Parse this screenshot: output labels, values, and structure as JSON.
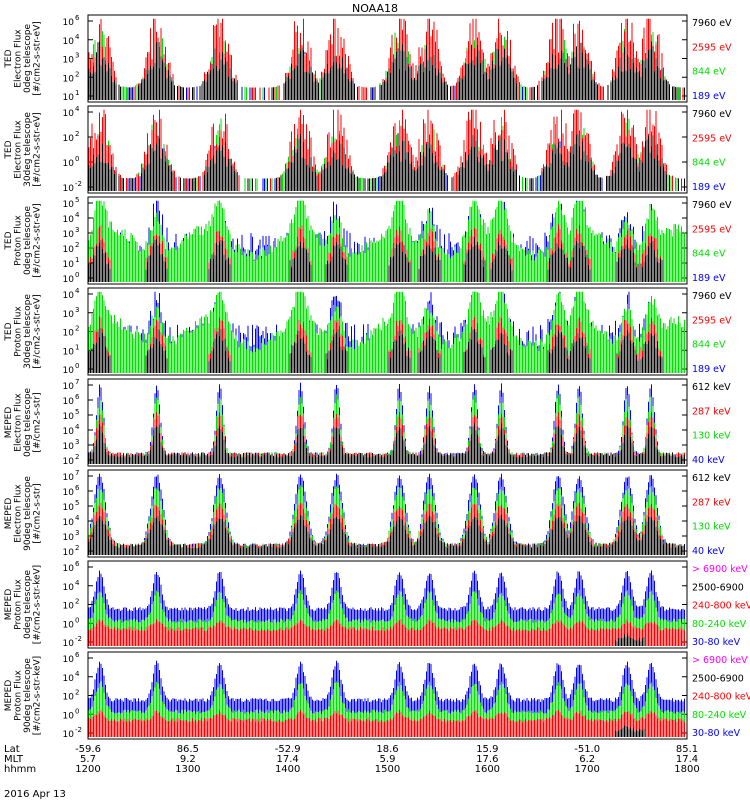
{
  "title": "NOAA18",
  "date_label": "2016 Apr 13",
  "xaxis": {
    "row_labels": [
      "Lat",
      "MLT",
      "hhmm"
    ],
    "ticks": [
      {
        "lat": "-59.6",
        "mlt": "5.7",
        "hhmm": "1200"
      },
      {
        "lat": "86.5",
        "mlt": "9.2",
        "hhmm": "1300"
      },
      {
        "lat": "-52.9",
        "mlt": "17.4",
        "hhmm": "1400"
      },
      {
        "lat": "18.6",
        "mlt": "5.9",
        "hhmm": "1500"
      },
      {
        "lat": "15.9",
        "mlt": "17.6",
        "hhmm": "1600"
      },
      {
        "lat": "-51.0",
        "mlt": "6.2",
        "hhmm": "1700"
      },
      {
        "lat": "85.1",
        "mlt": "17.4",
        "hhmm": "1800"
      }
    ]
  },
  "colors": {
    "black": "#000000",
    "red": "#ff0000",
    "green": "#00e000",
    "blue": "#0000ff",
    "magenta": "#ff00ff"
  },
  "panels": [
    {
      "id": "ted-e-0",
      "ylabel": [
        "TED",
        "Electron Flux",
        "0deg telescope",
        "[#/cm2-s-str-eV]"
      ],
      "ticks": [
        {
          "v": "10",
          "e": "6"
        },
        {
          "v": "10",
          "e": "4"
        },
        {
          "v": "10",
          "e": "3"
        },
        {
          "v": "10",
          "e": "2"
        },
        {
          "v": "10",
          "e": "1"
        }
      ],
      "legend": [
        {
          "text": "7960 eV",
          "color": "black"
        },
        {
          "text": "2595 eV",
          "color": "red"
        },
        {
          "text": "844 eV",
          "color": "green"
        },
        {
          "text": "189 eV",
          "color": "blue"
        }
      ]
    },
    {
      "id": "ted-e-30",
      "ylabel": [
        "TED",
        "Electron Flux",
        "30deg telescope",
        "[#/cm2-s-str-eV]"
      ],
      "ticks": [
        {
          "v": "10",
          "e": "4"
        },
        {
          "v": "10",
          "e": "2"
        },
        {
          "v": "10",
          "e": "0"
        },
        {
          "v": "10",
          "e": "-2"
        }
      ],
      "legend": [
        {
          "text": "7960 eV",
          "color": "black"
        },
        {
          "text": "2595 eV",
          "color": "red"
        },
        {
          "text": "844 eV",
          "color": "green"
        },
        {
          "text": "189 eV",
          "color": "blue"
        }
      ]
    },
    {
      "id": "ted-p-0",
      "ylabel": [
        "TED",
        "Proton Flux",
        "0deg telescope",
        "[#/cm2-s-str-eV]"
      ],
      "ticks": [
        {
          "v": "10",
          "e": "5"
        },
        {
          "v": "10",
          "e": "4"
        },
        {
          "v": "10",
          "e": "3"
        },
        {
          "v": "10",
          "e": "2"
        },
        {
          "v": "10",
          "e": "1"
        },
        {
          "v": "10",
          "e": "0"
        }
      ],
      "legend": [
        {
          "text": "7960 eV",
          "color": "black"
        },
        {
          "text": "2595 eV",
          "color": "red"
        },
        {
          "text": "844 eV",
          "color": "green"
        },
        {
          "text": "189 eV",
          "color": "blue"
        }
      ]
    },
    {
      "id": "ted-p-30",
      "ylabel": [
        "TED",
        "Proton Flux",
        "30deg telescope",
        "[#/cm2-s-str-eV]"
      ],
      "ticks": [
        {
          "v": "10",
          "e": "4"
        },
        {
          "v": "10",
          "e": "3"
        },
        {
          "v": "10",
          "e": "2"
        },
        {
          "v": "10",
          "e": "1"
        },
        {
          "v": "10",
          "e": "0"
        }
      ],
      "legend": [
        {
          "text": "7960 eV",
          "color": "black"
        },
        {
          "text": "2595 eV",
          "color": "red"
        },
        {
          "text": "844 eV",
          "color": "green"
        },
        {
          "text": "189 eV",
          "color": "blue"
        }
      ]
    },
    {
      "id": "meped-e-0",
      "ylabel": [
        "MEPED",
        "Electron Flux",
        "0deg telescope",
        "[#/cm2-s-str]"
      ],
      "ticks": [
        {
          "v": "10",
          "e": "7"
        },
        {
          "v": "10",
          "e": "6"
        },
        {
          "v": "10",
          "e": "5"
        },
        {
          "v": "10",
          "e": "4"
        },
        {
          "v": "10",
          "e": "3"
        },
        {
          "v": "10",
          "e": "2"
        }
      ],
      "legend": [
        {
          "text": "612 keV",
          "color": "black"
        },
        {
          "text": "287 keV",
          "color": "red"
        },
        {
          "text": "130 keV",
          "color": "green"
        },
        {
          "text": "40 keV",
          "color": "blue"
        }
      ]
    },
    {
      "id": "meped-e-90",
      "ylabel": [
        "MEPED",
        "Electron Flux",
        "90deg telescope",
        "[#/cm2-s-str]"
      ],
      "ticks": [
        {
          "v": "10",
          "e": "7"
        },
        {
          "v": "10",
          "e": "6"
        },
        {
          "v": "10",
          "e": "5"
        },
        {
          "v": "10",
          "e": "4"
        },
        {
          "v": "10",
          "e": "3"
        },
        {
          "v": "10",
          "e": "2"
        }
      ],
      "legend": [
        {
          "text": "612 keV",
          "color": "black"
        },
        {
          "text": "287 keV",
          "color": "red"
        },
        {
          "text": "130 keV",
          "color": "green"
        },
        {
          "text": "40 keV",
          "color": "blue"
        }
      ]
    },
    {
      "id": "meped-p-0",
      "ylabel": [
        "MEPED",
        "Proton Flux",
        "0deg telescope",
        "[#/cm2-s-str-keV]"
      ],
      "ticks": [
        {
          "v": "10",
          "e": "6"
        },
        {
          "v": "10",
          "e": "4"
        },
        {
          "v": "10",
          "e": "2"
        },
        {
          "v": "10",
          "e": "0"
        },
        {
          "v": "10",
          "e": "-2"
        }
      ],
      "legend": [
        {
          "text": "> 6900 keV",
          "color": "magenta"
        },
        {
          "text": "2500-6900",
          "color": "black"
        },
        {
          "text": "240-800 keV",
          "color": "red"
        },
        {
          "text": "80-240 keV",
          "color": "green"
        },
        {
          "text": "30-80 keV",
          "color": "blue"
        }
      ]
    },
    {
      "id": "meped-p-90",
      "ylabel": [
        "MEPED",
        "Proton Flux",
        "90deg telescope",
        "[#/cm2-s-str-keV]"
      ],
      "ticks": [
        {
          "v": "10",
          "e": "6"
        },
        {
          "v": "10",
          "e": "4"
        },
        {
          "v": "10",
          "e": "2"
        },
        {
          "v": "10",
          "e": "0"
        },
        {
          "v": "10",
          "e": "-2"
        }
      ],
      "legend": [
        {
          "text": "> 6900 keV",
          "color": "magenta"
        },
        {
          "text": "2500-6900",
          "color": "black"
        },
        {
          "text": "240-800 keV",
          "color": "red"
        },
        {
          "text": "80-240 keV",
          "color": "green"
        },
        {
          "text": "30-80 keV",
          "color": "blue"
        }
      ]
    }
  ],
  "chart_data": {
    "type": "line",
    "title": "NOAA18",
    "x_time_range": [
      "1200",
      "1800"
    ],
    "x_ticks_hhmm": [
      "1200",
      "1300",
      "1400",
      "1500",
      "1600",
      "1700",
      "1800"
    ],
    "panels": 8,
    "series_per_panel": {
      "TED electron/proton": [
        "7960 eV",
        "2595 eV",
        "844 eV",
        "189 eV"
      ],
      "MEPED electron": [
        "612 keV",
        "287 keV",
        "130 keV",
        "40 keV"
      ],
      "MEPED proton": [
        "> 6900 keV",
        "2500-6900",
        "240-800 keV",
        "80-240 keV",
        "30-80 keV"
      ]
    },
    "y_scale": "log",
    "burst_times_hhmm": [
      "1205",
      "1227",
      "1302",
      "1342",
      "1420",
      "1452",
      "1510",
      "1540",
      "1600",
      "1618",
      "1648",
      "1712",
      "1736"
    ]
  }
}
